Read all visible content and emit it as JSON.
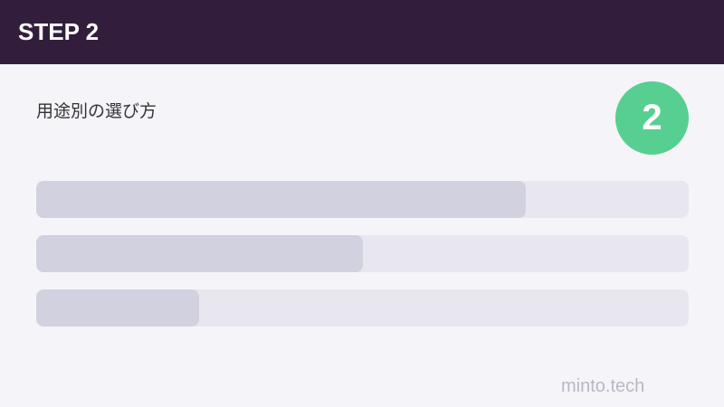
{
  "header": {
    "title": "STEP 2",
    "background": "#321e3c"
  },
  "main": {
    "subtitle": "用途別の選び方",
    "step_badge": {
      "number": "2",
      "color": "#57cf91"
    },
    "bars": [
      {
        "progress_percent": 75
      },
      {
        "progress_percent": 50
      },
      {
        "progress_percent": 25
      }
    ]
  },
  "footer": {
    "brand": "minto.tech"
  }
}
